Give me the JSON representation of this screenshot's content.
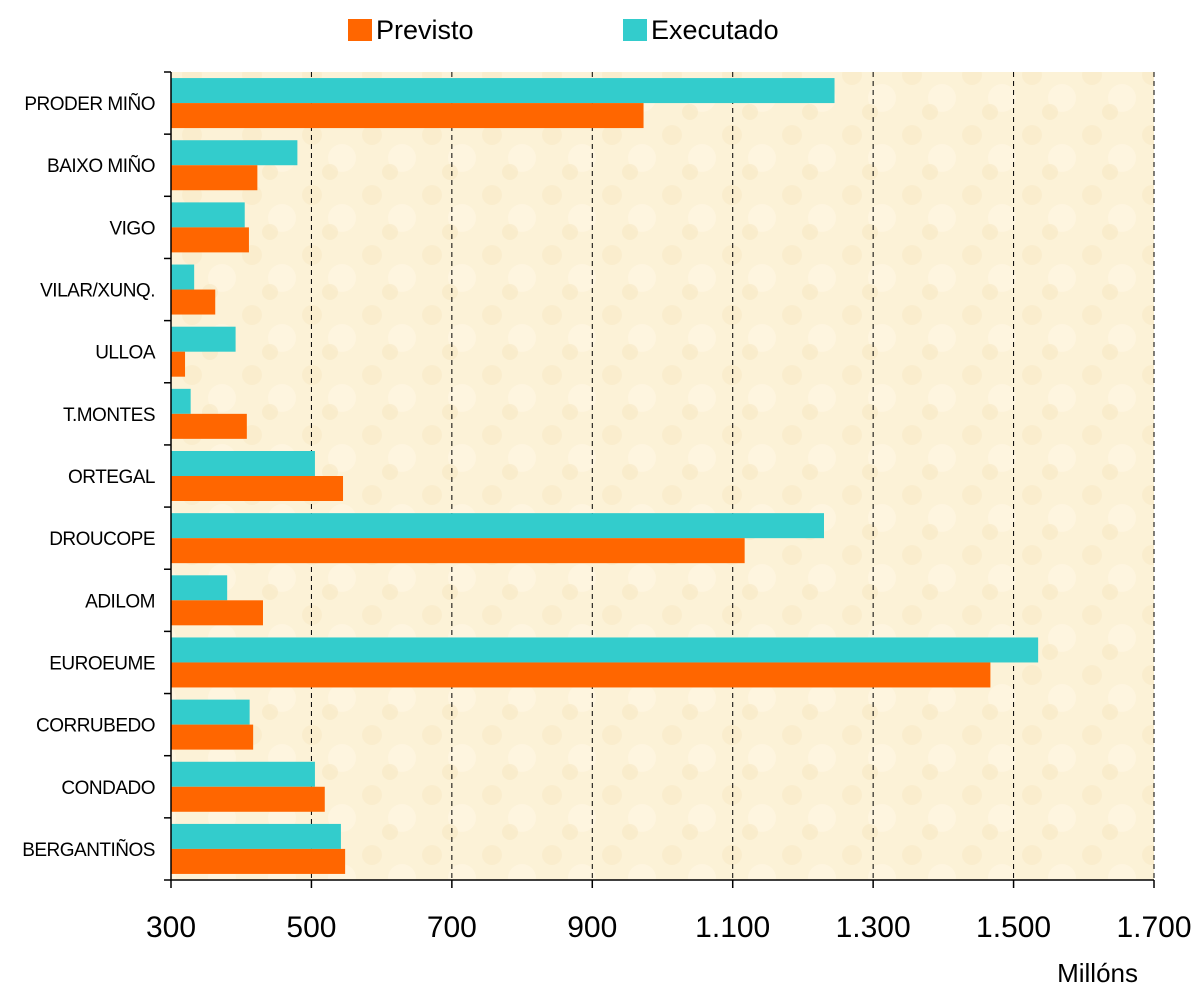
{
  "chart_data": {
    "type": "bar",
    "orientation": "horizontal",
    "categories": [
      "PRODER MIÑO",
      "BAIXO MIÑO",
      "VIGO",
      "VILAR/XUNQ.",
      "ULLOA",
      "T.MONTES",
      "ORTEGAL",
      "DROUCOPE",
      "ADILOM",
      "EUROEUME",
      "CORRUBEDO",
      "CONDADO",
      "BERGANTIÑOS"
    ],
    "series": [
      {
        "name": "Executado",
        "color": "#33CCCC",
        "values": [
          1245,
          480,
          405,
          333,
          392,
          328,
          505,
          1230,
          380,
          1535,
          412,
          505,
          542
        ]
      },
      {
        "name": "Previsto",
        "color": "#FF6600",
        "values": [
          973,
          423,
          411,
          363,
          320,
          408,
          545,
          1117,
          431,
          1467,
          417,
          519,
          548
        ]
      }
    ],
    "legend_order": [
      "Previsto",
      "Executado"
    ],
    "legend_position": "top",
    "xlim": [
      300,
      1700
    ],
    "xticks": [
      300,
      500,
      700,
      900,
      1100,
      1300,
      1500,
      1700
    ],
    "xtick_labels": [
      "300",
      "500",
      "700",
      "900",
      "1.100",
      "1.300",
      "1.500",
      "1.700"
    ],
    "xlabel": "Millóns",
    "grid": "vertical dashed",
    "plot_background": "#FCF2D7"
  }
}
